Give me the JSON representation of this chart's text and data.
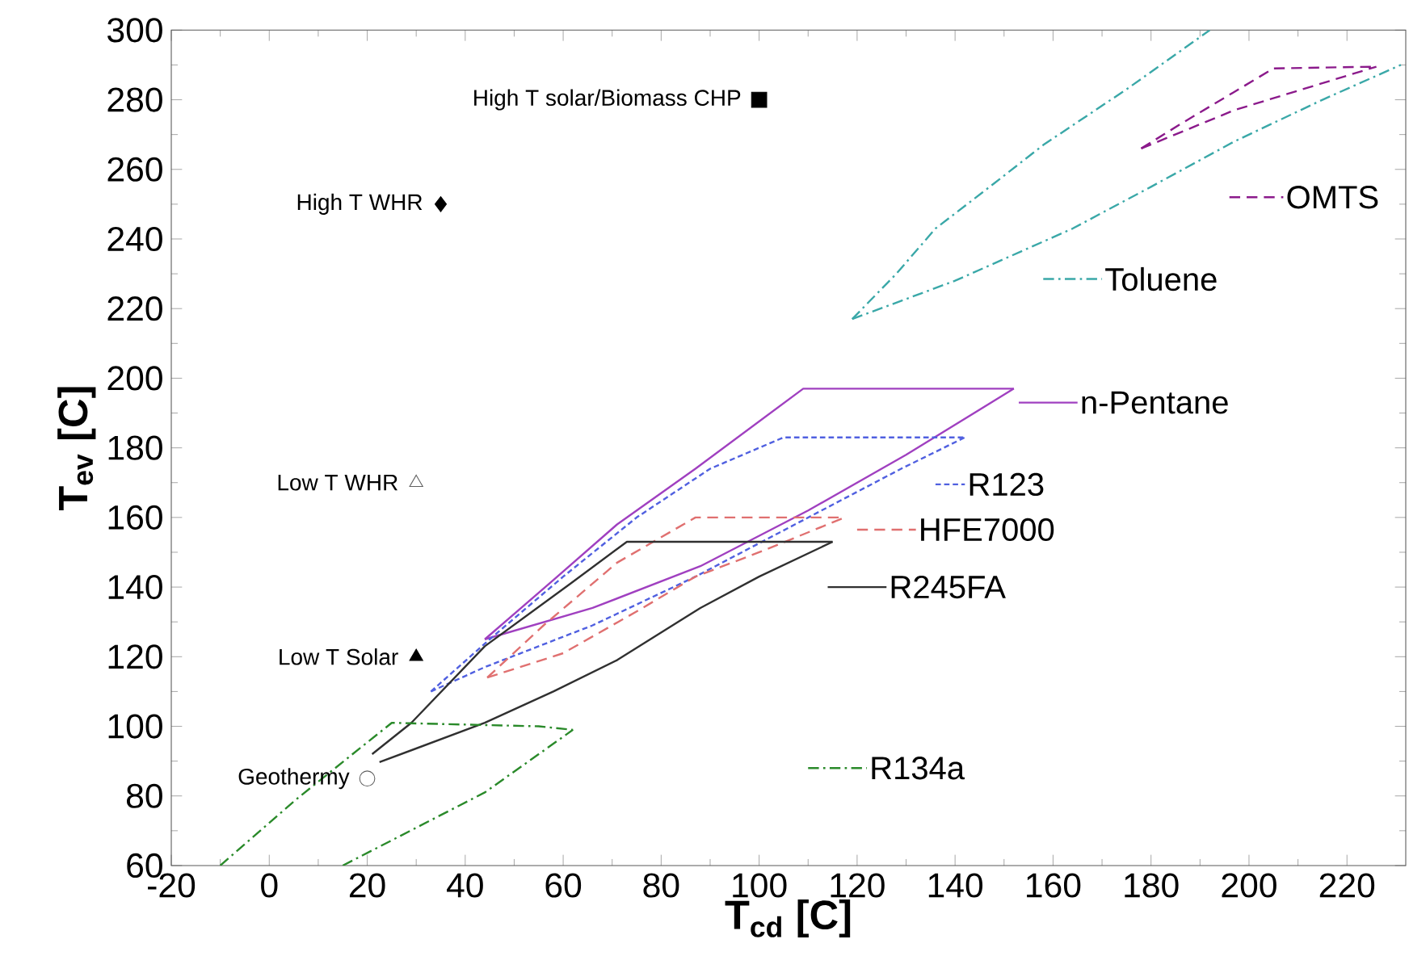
{
  "chart_data": {
    "type": "line",
    "xlabel": "T$_{cd}$ [C]",
    "ylabel": "T$_{ev}$ [C]",
    "xlim": [
      -20,
      232
    ],
    "ylim": [
      60,
      300
    ],
    "xticks": [
      -20,
      0,
      20,
      40,
      60,
      80,
      100,
      120,
      140,
      160,
      180,
      200,
      220
    ],
    "yticks": [
      60,
      80,
      100,
      120,
      140,
      160,
      180,
      200,
      220,
      240,
      260,
      280,
      300
    ],
    "grid": false,
    "legend": "right",
    "series": [
      {
        "name": "OMTS",
        "line_style": "dashed",
        "color": "#8b1a8b",
        "x": [
          178,
          186,
          205,
          226
        ],
        "values": [
          266,
          273,
          289,
          289.5
        ]
      },
      {
        "line_style": "dashed",
        "color": "#8b1a8b",
        "x": [
          178,
          197,
          226
        ],
        "values": [
          266,
          277,
          289.5
        ]
      },
      {
        "name": "Toluene",
        "line_style": "dashdot",
        "color": "#3aa8a8",
        "x": [
          119,
          128,
          136,
          148,
          158,
          175,
          192
        ],
        "values": [
          217,
          230,
          243,
          256,
          267,
          283,
          300
        ]
      },
      {
        "line_style": "dashdot",
        "color": "#3aa8a8",
        "x": [
          119,
          140,
          164,
          180,
          197,
          215,
          231
        ],
        "values": [
          217,
          228,
          243,
          255,
          268,
          280,
          290
        ]
      },
      {
        "name": "n-Pentane",
        "line_style": "solid",
        "color": "#a040c0",
        "x": [
          44,
          58,
          71,
          87,
          109,
          152
        ],
        "values": [
          125,
          142,
          158,
          174,
          197,
          197
        ]
      },
      {
        "line_style": "solid",
        "color": "#a040c0",
        "x": [
          44,
          66,
          88,
          110,
          130,
          152
        ],
        "values": [
          125,
          134,
          146,
          162,
          178,
          197
        ]
      },
      {
        "name": "R123",
        "line_style": "dotted",
        "color": "#5060e0",
        "x": [
          33,
          45,
          60,
          75,
          90,
          105,
          142
        ],
        "values": [
          110,
          125,
          143,
          160,
          174,
          183,
          183
        ]
      },
      {
        "line_style": "dotted",
        "color": "#5060e0",
        "x": [
          33,
          44,
          66,
          87,
          129,
          142
        ],
        "values": [
          110,
          117,
          129,
          143,
          174,
          183
        ]
      },
      {
        "name": "HFE7000",
        "line_style": "dashed",
        "color": "#e07070",
        "x": [
          44.5,
          56,
          71,
          87,
          117.5
        ],
        "values": [
          114,
          129,
          147,
          160,
          160
        ]
      },
      {
        "line_style": "dashed",
        "color": "#e07070",
        "x": [
          44.5,
          60,
          75,
          87,
          100,
          117.5
        ],
        "values": [
          114,
          121,
          133,
          143,
          150,
          160
        ]
      },
      {
        "name": "R245FA",
        "line_style": "solid",
        "color": "#303030",
        "x": [
          21,
          29,
          44,
          61.5,
          73,
          115
        ],
        "values": [
          92,
          101,
          123,
          141,
          153,
          153
        ]
      },
      {
        "line_style": "solid",
        "color": "#303030",
        "x": [
          22.5,
          44,
          58,
          71,
          88,
          100,
          115
        ],
        "values": [
          89.7,
          101,
          110,
          119,
          134,
          143,
          153
        ]
      },
      {
        "name": "R134a",
        "line_style": "dashdot",
        "color": "#2a8a2a",
        "x": [
          -10,
          5.5,
          17,
          25,
          55,
          62
        ],
        "values": [
          60,
          79,
          92,
          101,
          100,
          99
        ]
      },
      {
        "line_style": "dashdot",
        "color": "#2a8a2a",
        "x": [
          15,
          44,
          62
        ],
        "values": [
          60,
          81,
          99
        ]
      },
      {
        "name": "High T solar/Biomass CHP",
        "type": "scatter",
        "marker": "square",
        "color": "#000000",
        "x": [
          100
        ],
        "values": [
          280
        ]
      },
      {
        "name": "High T WHR",
        "type": "scatter",
        "marker": "diamond",
        "color": "#000000",
        "x": [
          35
        ],
        "values": [
          250
        ]
      },
      {
        "name": "Low T WHR",
        "type": "scatter",
        "marker": "triangle-down-open",
        "color": "#606060",
        "x": [
          30
        ],
        "values": [
          170
        ]
      },
      {
        "name": "Low T Solar",
        "type": "scatter",
        "marker": "triangle",
        "color": "#000000",
        "x": [
          30
        ],
        "values": [
          120
        ]
      },
      {
        "name": "Geothermy",
        "type": "scatter",
        "marker": "circle-open",
        "color": "#606060",
        "x": [
          20
        ],
        "values": [
          85
        ]
      }
    ]
  }
}
